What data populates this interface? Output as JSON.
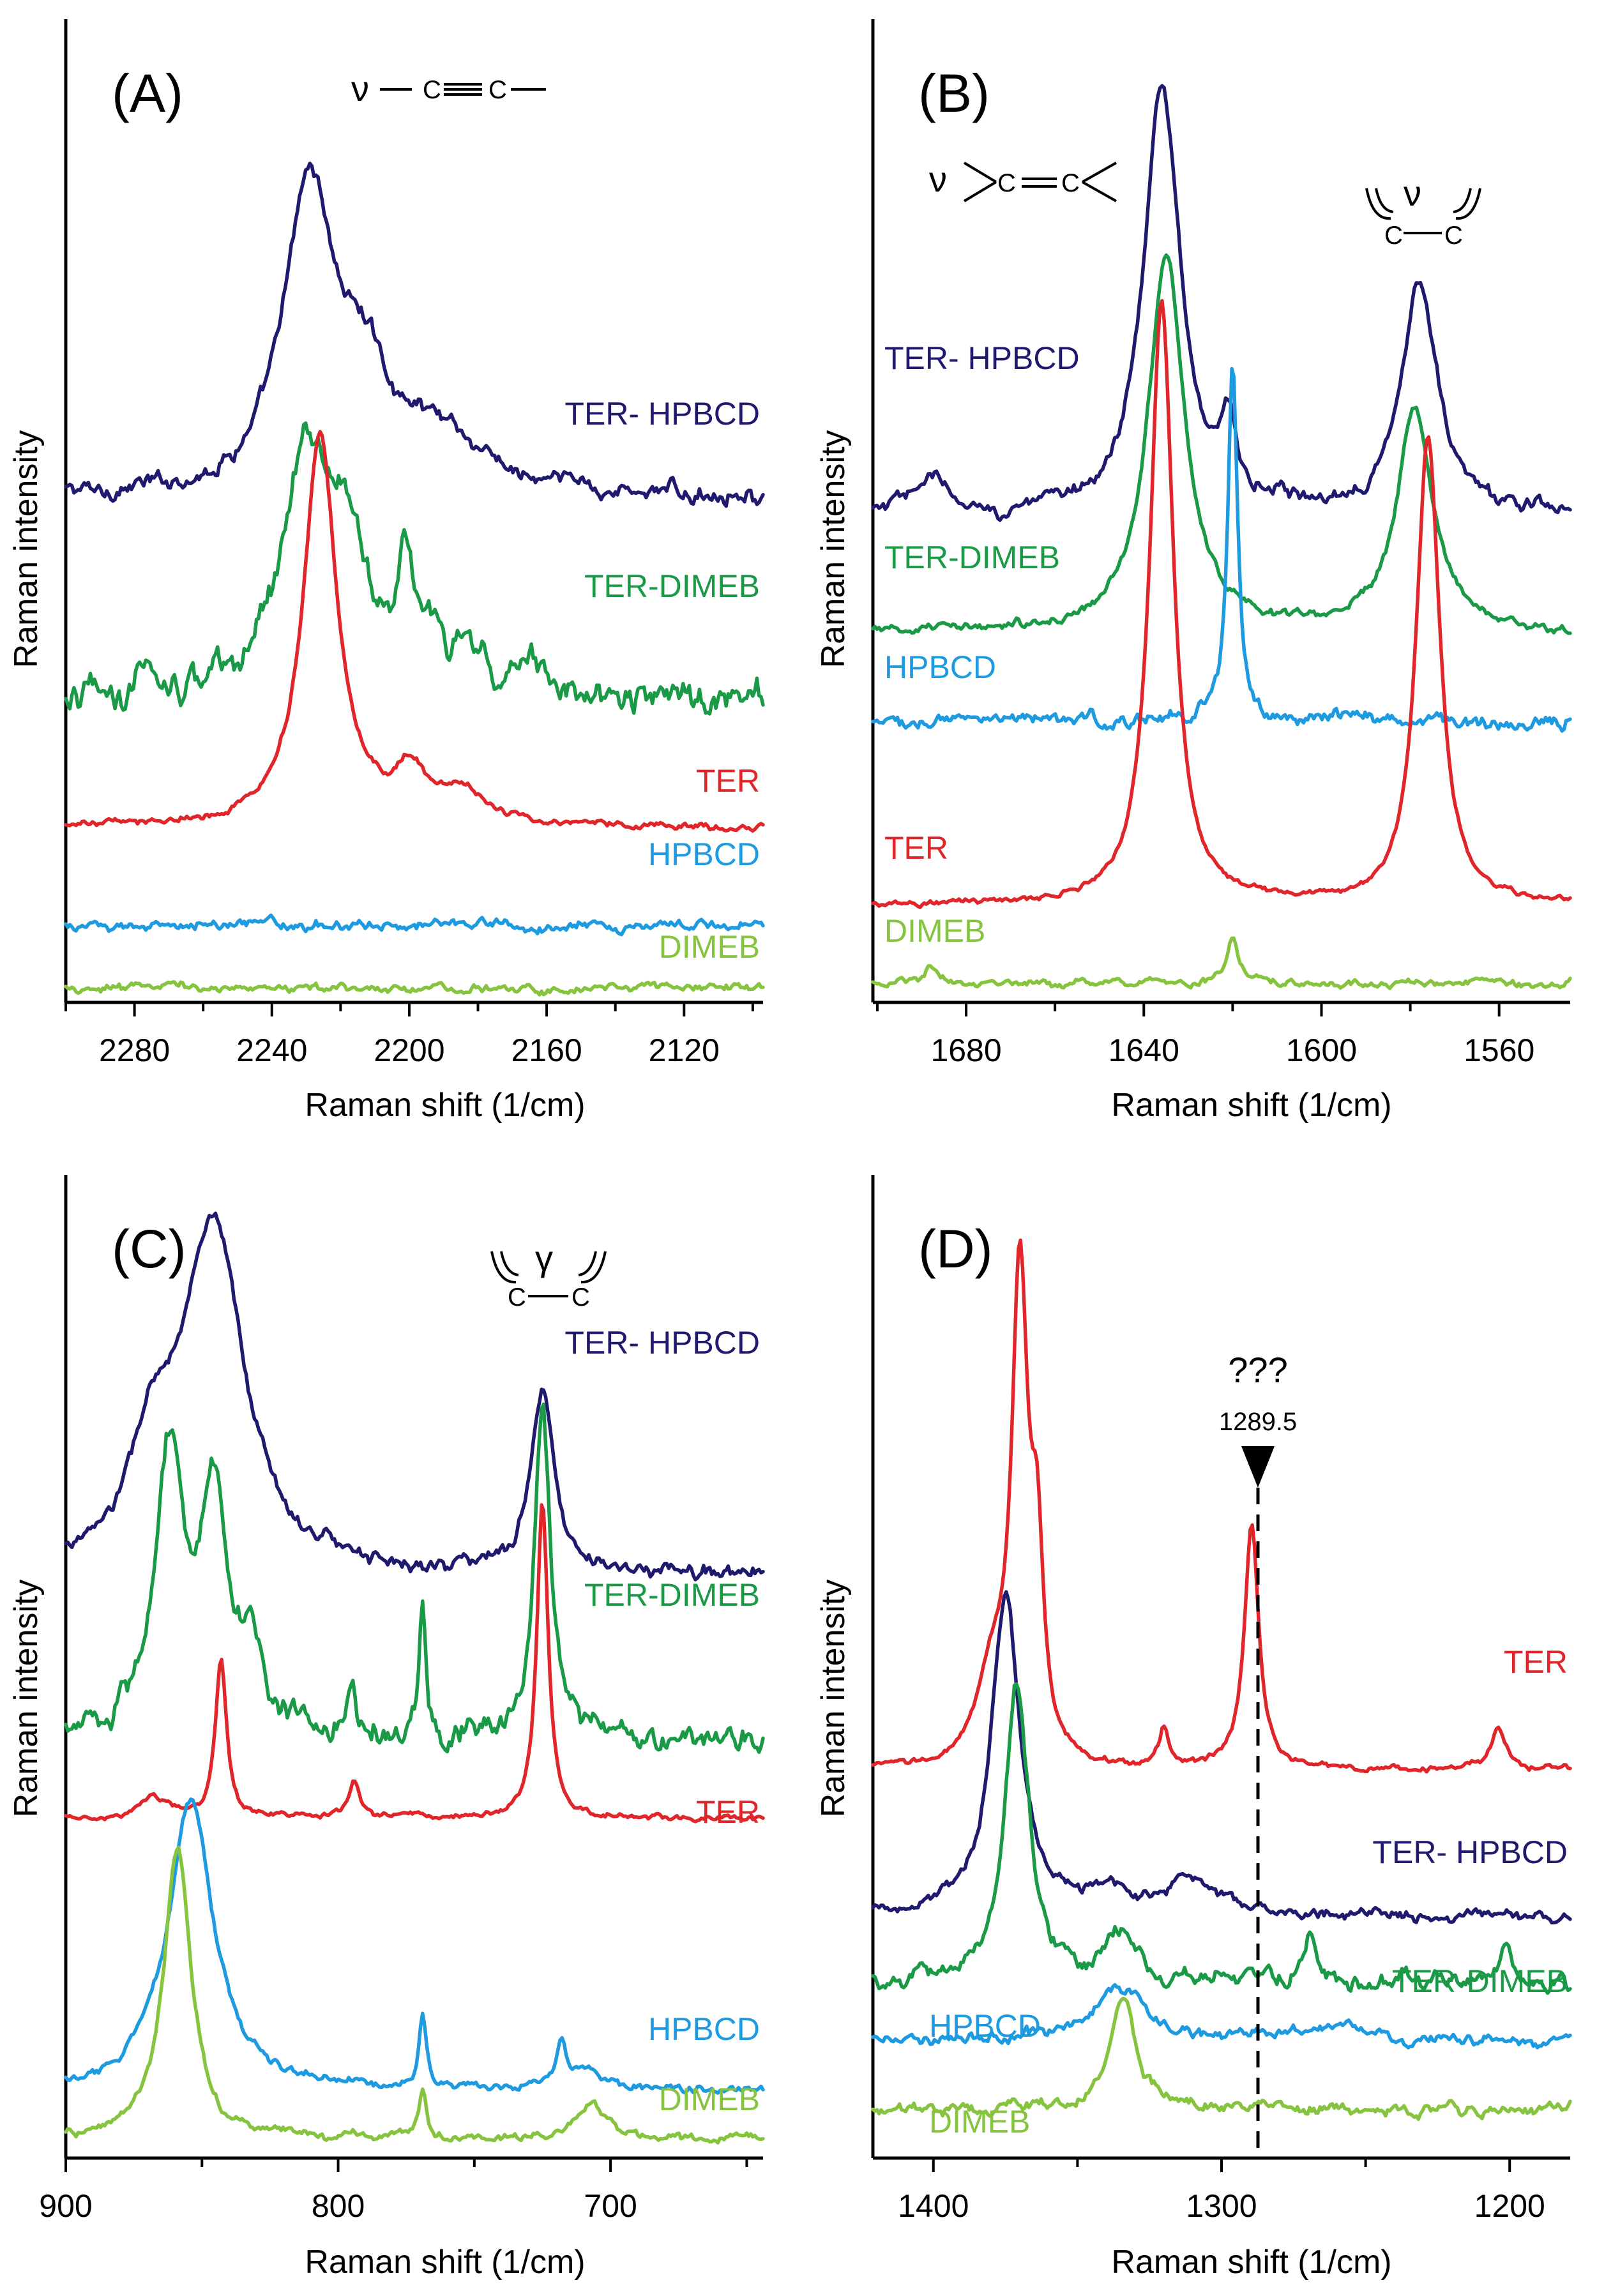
{
  "colors": {
    "TER- HPBCD": "#1f1a6e",
    "TER-DIMEB": "#1a9a46",
    "TER": "#e0262a",
    "HPBCD": "#1e9be0",
    "DIMEB": "#86c440"
  },
  "chart_data": [
    {
      "type": "line",
      "panel": "(A)",
      "xlabel": "Raman shift (1/cm)",
      "ylabel": "Raman intensity",
      "xlim": [
        2300,
        2097
      ],
      "x_reversed": true,
      "ylim": [
        0,
        1
      ],
      "xticks": [
        2280,
        2240,
        2200,
        2160,
        2120
      ],
      "annotation": "ν −C≡C−",
      "series": [
        {
          "name": "TER- HPBCD",
          "label": "TER- HPBCD",
          "baseline": 0.52,
          "noise": 0.012,
          "peaks": [
            [
              2229,
              0.31,
              9
            ],
            [
              2213,
              0.1,
              9
            ],
            [
              2190,
              0.06,
              12
            ]
          ]
        },
        {
          "name": "TER-DIMEB",
          "label": "TER-DIMEB",
          "baseline": 0.31,
          "noise": 0.022,
          "peaks": [
            [
              2230,
              0.23,
              8
            ],
            [
              2218,
              0.14,
              8
            ],
            [
              2201,
              0.1,
              3
            ],
            [
              2193,
              0.06,
              4
            ],
            [
              2182,
              0.05,
              5
            ],
            [
              2165,
              0.03,
              4
            ],
            [
              2278,
              0.05,
              2
            ]
          ]
        },
        {
          "name": "TER",
          "label": "TER",
          "baseline": 0.18,
          "noise": 0.005,
          "peaks": [
            [
              2226,
              0.4,
              6
            ],
            [
              2200,
              0.05,
              6
            ],
            [
              2185,
              0.03,
              8
            ]
          ]
        },
        {
          "name": "HPBCD",
          "label": "HPBCD",
          "baseline": 0.08,
          "noise": 0.007,
          "peaks": []
        },
        {
          "name": "DIMEB",
          "label": "DIMEB",
          "baseline": 0.015,
          "noise": 0.006,
          "peaks": []
        }
      ]
    },
    {
      "type": "line",
      "panel": "(B)",
      "xlabel": "Raman shift (1/cm)",
      "ylabel": "Raman intensity",
      "xlim": [
        1701,
        1544
      ],
      "x_reversed": true,
      "ylim": [
        0,
        1
      ],
      "xticks": [
        1680,
        1640,
        1600,
        1560
      ],
      "annotation": "ν >C=C<   (ν ring C=C)",
      "series": [
        {
          "name": "TER- HPBCD",
          "label": "TER- HPBCD",
          "baseline": 0.5,
          "noise": 0.01,
          "peaks": [
            [
              1636,
              0.44,
              5
            ],
            [
              1621,
              0.08,
              2
            ],
            [
              1578,
              0.24,
              5
            ],
            [
              1688,
              0.04,
              4
            ]
          ]
        },
        {
          "name": "TER-DIMEB",
          "label": "TER-DIMEB",
          "baseline": 0.38,
          "noise": 0.006,
          "peaks": [
            [
              1635,
              0.39,
              5
            ],
            [
              1579,
              0.23,
              5
            ]
          ]
        },
        {
          "name": "HPBCD",
          "label": "HPBCD",
          "baseline": 0.29,
          "noise": 0.01,
          "peaks": [
            [
              1620,
              0.37,
              1.3
            ]
          ]
        },
        {
          "name": "TER",
          "label": "TER",
          "baseline": 0.1,
          "noise": 0.004,
          "peaks": [
            [
              1636,
              0.62,
              3.2
            ],
            [
              1576,
              0.48,
              3.2
            ]
          ]
        },
        {
          "name": "DIMEB",
          "label": "DIMEB",
          "baseline": 0.02,
          "noise": 0.005,
          "peaks": [
            [
              1620,
              0.05,
              1.5
            ],
            [
              1688,
              0.02,
              1.5
            ]
          ]
        }
      ]
    },
    {
      "type": "line",
      "panel": "(C)",
      "xlabel": "Raman shift (1/cm)",
      "ylabel": "Raman intensity",
      "xlim": [
        900,
        644
      ],
      "x_reversed": true,
      "ylim": [
        0,
        1
      ],
      "xticks": [
        900,
        800,
        700
      ],
      "annotation": "γ ring C=C",
      "series": [
        {
          "name": "TER- HPBCD",
          "label": "TER- HPBCD",
          "baseline": 0.6,
          "noise": 0.01,
          "peaks": [
            [
              846,
              0.35,
              14
            ],
            [
              868,
              0.1,
              10
            ],
            [
              725,
              0.19,
              5
            ]
          ]
        },
        {
          "name": "TER-DIMEB",
          "label": "TER-DIMEB",
          "baseline": 0.43,
          "noise": 0.018,
          "peaks": [
            [
              862,
              0.29,
              6
            ],
            [
              846,
              0.26,
              6
            ],
            [
              832,
              0.08,
              5
            ],
            [
              725,
              0.36,
              3.5
            ],
            [
              769,
              0.14,
              1.5
            ],
            [
              795,
              0.04,
              1.5
            ]
          ]
        },
        {
          "name": "TER",
          "label": "TER",
          "baseline": 0.35,
          "noise": 0.004,
          "peaks": [
            [
              843,
              0.16,
              2.5
            ],
            [
              725,
              0.33,
              2.5
            ],
            [
              794,
              0.04,
              2.5
            ],
            [
              868,
              0.02,
              6
            ]
          ]
        },
        {
          "name": "HPBCD",
          "label": "HPBCD",
          "baseline": 0.07,
          "noise": 0.006,
          "peaks": [
            [
              854,
              0.3,
              10
            ],
            [
              769,
              0.08,
              1.6
            ],
            [
              718,
              0.05,
              2
            ],
            [
              708,
              0.02,
              5
            ]
          ]
        },
        {
          "name": "DIMEB",
          "label": "DIMEB",
          "baseline": 0.02,
          "noise": 0.006,
          "peaks": [
            [
              859,
              0.3,
              6
            ],
            [
              769,
              0.05,
              1.8
            ],
            [
              707,
              0.04,
              6
            ]
          ]
        }
      ]
    },
    {
      "type": "line",
      "panel": "(D)",
      "xlabel": "Raman shift (1/cm)",
      "ylabel": "Raman intensity",
      "xlim": [
        1421,
        1179
      ],
      "x_reversed": true,
      "ylim": [
        0,
        1
      ],
      "xticks": [
        1400,
        1300,
        1200
      ],
      "annotation": "???",
      "marker": {
        "label": "1289.5",
        "x": 1289.5
      },
      "series": [
        {
          "name": "TER",
          "label": "TER",
          "baseline": 0.4,
          "noise": 0.004,
          "peaks": [
            [
              1370,
              0.5,
              3.5
            ],
            [
              1364,
              0.18,
              2.5
            ],
            [
              1380,
              0.08,
              6
            ],
            [
              1289.5,
              0.25,
              3
            ],
            [
              1320,
              0.04,
              2
            ],
            [
              1204,
              0.04,
              3
            ]
          ]
        },
        {
          "name": "TER- HPBCD",
          "label": "TER- HPBCD",
          "baseline": 0.25,
          "noise": 0.008,
          "peaks": [
            [
              1375,
              0.33,
              6
            ],
            [
              1310,
              0.04,
              8
            ],
            [
              1340,
              0.02,
              10
            ]
          ]
        },
        {
          "name": "TER-DIMEB",
          "label": "TER-DIMEB",
          "baseline": 0.18,
          "noise": 0.012,
          "peaks": [
            [
              1371,
              0.31,
              5
            ],
            [
              1335,
              0.06,
              6
            ],
            [
              1269,
              0.05,
              3
            ],
            [
              1201,
              0.04,
              3
            ]
          ]
        },
        {
          "name": "HPBCD",
          "label": "HPBCD",
          "baseline": 0.12,
          "noise": 0.008,
          "peaks": [
            [
              1336,
              0.06,
              10
            ],
            [
              1260,
              0.02,
              10
            ]
          ]
        },
        {
          "name": "DIMEB",
          "label": "DIMEB",
          "baseline": 0.05,
          "noise": 0.008,
          "peaks": [
            [
              1334,
              0.12,
              5
            ]
          ]
        }
      ]
    }
  ]
}
